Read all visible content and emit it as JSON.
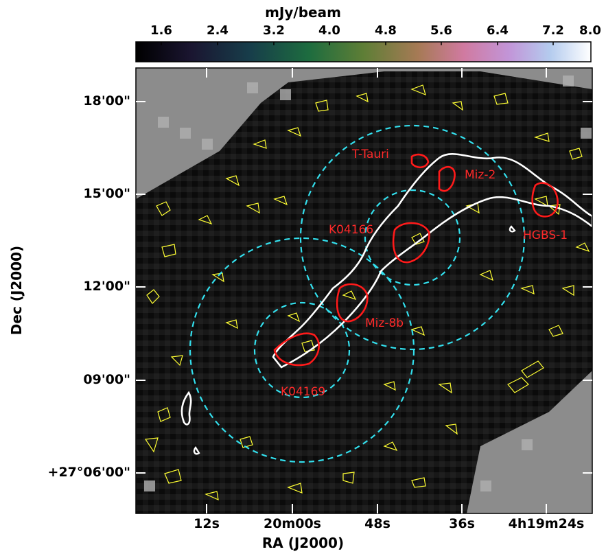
{
  "colorbar": {
    "title": "mJy/beam",
    "ticks": [
      "1.6",
      "2.4",
      "3.2",
      "4.0",
      "4.8",
      "5.6",
      "6.4",
      "7.2",
      "8.0"
    ],
    "range": [
      0.8,
      8.0
    ],
    "colormap": "cubehelix"
  },
  "axes": {
    "xlabel": "RA (J2000)",
    "ylabel": "Dec (J2000)",
    "x_ticks": [
      "12s",
      "20m00s",
      "48s",
      "36s",
      "4h19m24s"
    ],
    "y_ticks": [
      "18'00\"",
      "15'00\"",
      "12'00\"",
      "09'00\"",
      "+27°06'00\""
    ]
  },
  "sources": [
    {
      "name": "T-Tauri"
    },
    {
      "name": "Miz-2"
    },
    {
      "name": "K04166"
    },
    {
      "name": "HGBS-1"
    },
    {
      "name": "Miz-8b"
    },
    {
      "name": "K04169"
    }
  ],
  "colors": {
    "background_pixels": "#111111",
    "blank_region": "#8c8c8c",
    "contour_yellow": "#ffff33",
    "contour_white": "#ffffff",
    "contour_red": "#ff1a1a",
    "circle_cyan": "#33e0ee"
  }
}
